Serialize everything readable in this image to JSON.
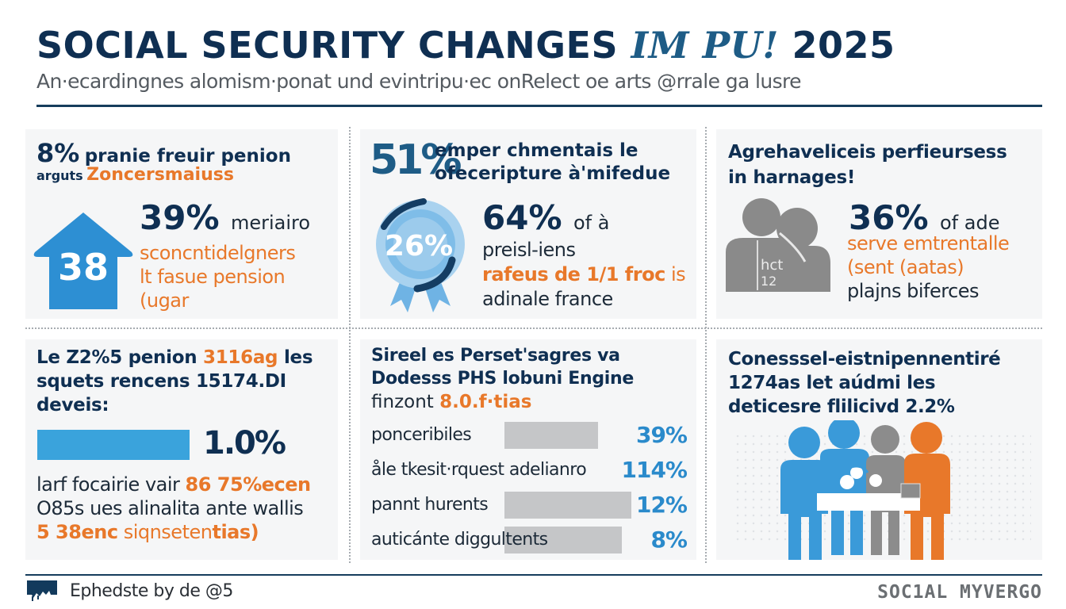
{
  "header": {
    "title_main": "SOCIAL SECURITY CHANGES",
    "title_accent": "IM PU!",
    "title_year": "2025",
    "subtitle": "An·ecardingnes alomism·ponat und evintripu·ec onRelect oe arts @rrale ga lusre"
  },
  "colors": {
    "navy": "#0f2f52",
    "blue": "#2a8acb",
    "light_blue": "#3aa3dc",
    "orange": "#e8782a",
    "gray": "#8a8a8a",
    "card_bg": "#f5f6f7"
  },
  "cards": {
    "pension_premium": {
      "head_big": "8%",
      "head_text": "pranie freuir penion",
      "sub_small": "arguts",
      "sub_orange": "Zoncersmaiuss",
      "icon": "house-arrow-icon",
      "icon_number": "38",
      "stat": "39%",
      "stat_tail": "meriairo",
      "lines": [
        "sconcntidelgners",
        "lt fasue pension",
        "(ugar"
      ]
    },
    "employment": {
      "head_big": "51%",
      "head_line1": "emper chmentais le",
      "head_line2": "ofeceripture à'mifedue",
      "icon": "award-rosette-icon",
      "icon_number": "26%",
      "stat": "64%",
      "stat_tail": "of à",
      "line1": "preisl-iens",
      "line2_orange": "rafeus de 1/1 froc",
      "line2_tail": "is",
      "line3": "adinale france"
    },
    "beneficiaries": {
      "head_line1": "Agrehaveliceis perfieursess",
      "head_line2": "in harnages!",
      "icon": "people-pair-icon",
      "icon_text1": "hct",
      "icon_text2": "12",
      "stat": "36%",
      "stat_tail": "of ade",
      "line1_orange": "serve emtrentalle",
      "line2_orange": "(sent (aatas)",
      "line3": "plajns biferces"
    },
    "pension_rate": {
      "head_line1_a": "Le Z2%5 penion",
      "head_line1_orange": "3116ag",
      "head_line1_b": "les",
      "head_line2": "squets rencens 15174.DI",
      "head_line3": "deveis:",
      "bar_value_percent": 1.0,
      "bar_label": "1.0%",
      "line1_a": "larf focairie vair",
      "line1_orange": "86 75%ecen",
      "line2": "O85s ues alinalita ante wallis",
      "line3_orange_bold": "5 38enc",
      "line3_orange": "siqnseten",
      "line3_orange_bold_end": "tias)"
    },
    "breakdown": {
      "head_line1": "Sireel es Perset'sagres va",
      "head_line2": "Dodesss PHS lobuni Engine",
      "sub_text": "finzont",
      "sub_orange": "8.0.f·tias",
      "rows": [
        {
          "label": "ponceribiles",
          "value": "39%"
        },
        {
          "label": "åle tkesit·rquest adelianro",
          "value": "114%"
        },
        {
          "label": "pannt hurents",
          "value": "12%"
        },
        {
          "label": "auticánte diggultents",
          "value": "8%"
        }
      ]
    },
    "family": {
      "head_line1": "Conesssel-eistnipennentiré",
      "head_line2": "1274as let aúdmi les",
      "head_line3": "deticesre flilicivd 2.2%",
      "icon": "family-group-icon"
    }
  },
  "footer": {
    "logo_icon": "building-logo-icon",
    "left_text": "Ephedste by de @5",
    "right_text": "SOC1AL MYVERGO"
  }
}
